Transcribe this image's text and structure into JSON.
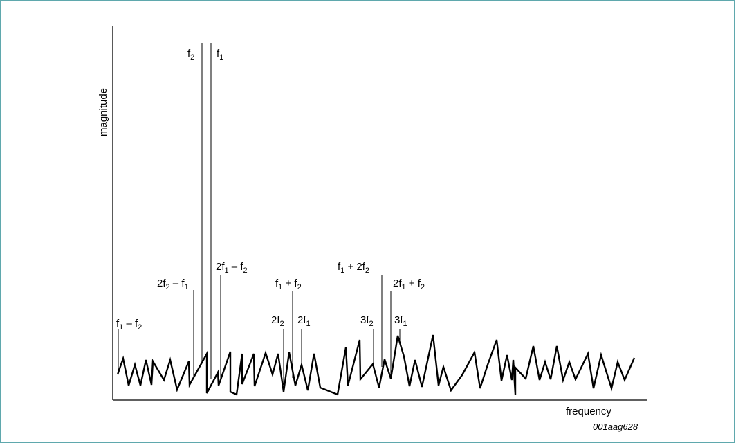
{
  "axes": {
    "y_label": "magnitude",
    "x_label": "frequency"
  },
  "figure_id": "001aag628",
  "peaks": [
    {
      "id": "f1-f2",
      "parts": [
        [
          "f",
          "1"
        ],
        [
          " – f",
          "2"
        ]
      ]
    },
    {
      "id": "2f2-f1",
      "parts": [
        [
          "2f",
          "2"
        ],
        [
          " – f",
          "1"
        ]
      ]
    },
    {
      "id": "f2",
      "parts": [
        [
          "f",
          "2"
        ]
      ]
    },
    {
      "id": "f1",
      "parts": [
        [
          "f",
          "1"
        ]
      ]
    },
    {
      "id": "2f1-f2",
      "parts": [
        [
          "2f",
          "1"
        ],
        [
          " – f",
          "2"
        ]
      ]
    },
    {
      "id": "2f2",
      "parts": [
        [
          "2f",
          "2"
        ]
      ]
    },
    {
      "id": "f1+f2",
      "parts": [
        [
          "f",
          "1"
        ],
        [
          " + f",
          "2"
        ]
      ]
    },
    {
      "id": "2f1",
      "parts": [
        [
          "2f",
          "1"
        ]
      ]
    },
    {
      "id": "3f2",
      "parts": [
        [
          "3f",
          "2"
        ]
      ]
    },
    {
      "id": "f1+2f2",
      "parts": [
        [
          "f",
          "1"
        ],
        [
          " + 2f",
          "2"
        ]
      ]
    },
    {
      "id": "2f1+f2",
      "parts": [
        [
          "2f",
          "1"
        ],
        [
          " + f",
          "2"
        ]
      ]
    },
    {
      "id": "3f1",
      "parts": [
        [
          "3f",
          "1"
        ]
      ]
    }
  ]
}
